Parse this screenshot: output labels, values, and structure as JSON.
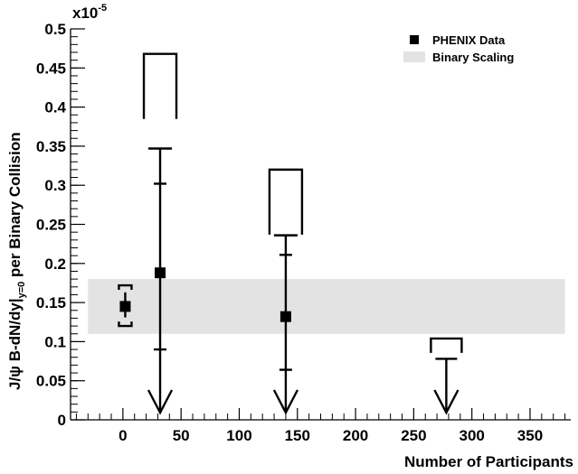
{
  "chart_data": {
    "type": "scatter",
    "xlabel": "Number of Participants",
    "ylabel": "J/ψ   B-dN/dy|",
    "ylabel_sub": "y=0",
    "ylabel_tail": " per Binary Collision",
    "y_exponent_label": "x10",
    "y_exponent_power": "-5",
    "xlim": [
      -45,
      385
    ],
    "ylim": [
      0,
      0.5
    ],
    "x_ticks": [
      0,
      50,
      100,
      150,
      200,
      250,
      300,
      350
    ],
    "x_tick_labels": [
      "0",
      "50",
      "100",
      "150",
      "200",
      "250",
      "300",
      "350"
    ],
    "y_ticks": [
      0,
      0.05,
      0.1,
      0.15,
      0.2,
      0.25,
      0.3,
      0.35,
      0.4,
      0.45,
      0.5
    ],
    "y_tick_labels": [
      "0",
      "0.05",
      "0.1",
      "0.15",
      "0.2",
      "0.25",
      "0.3",
      "0.35",
      "0.4",
      "0.45",
      "0.5"
    ],
    "legend": {
      "position": "top-right",
      "entries": [
        {
          "label": "PHENIX Data",
          "marker": "square",
          "color": "#000000"
        },
        {
          "label": "Binary Scaling",
          "marker": "band",
          "color": "#e3e3e3"
        }
      ]
    },
    "band": {
      "name": "Binary Scaling",
      "x_range": [
        -30,
        380
      ],
      "y_range": [
        0.11,
        0.18
      ],
      "color": "#e3e3e3"
    },
    "series": [
      {
        "name": "PHENIX Data",
        "points": [
          {
            "x": 2,
            "y": 0.145,
            "stat_lo": 0.131,
            "stat_hi": 0.163,
            "sys_lo": 0.12,
            "sys_hi": 0.172
          },
          {
            "x": 32,
            "y": 0.188,
            "stat_lo": 0.09,
            "stat_hi": 0.302,
            "sys_hi": 0.347,
            "upper_limit": 0.468
          },
          {
            "x": 140,
            "y": 0.132,
            "stat_lo": 0.064,
            "stat_hi": 0.211,
            "sys_hi": 0.236,
            "upper_limit": 0.32
          }
        ],
        "upper_limits": [
          {
            "x": 278,
            "limit": 0.078,
            "bracket": 0.104
          }
        ]
      }
    ],
    "grid": false
  }
}
